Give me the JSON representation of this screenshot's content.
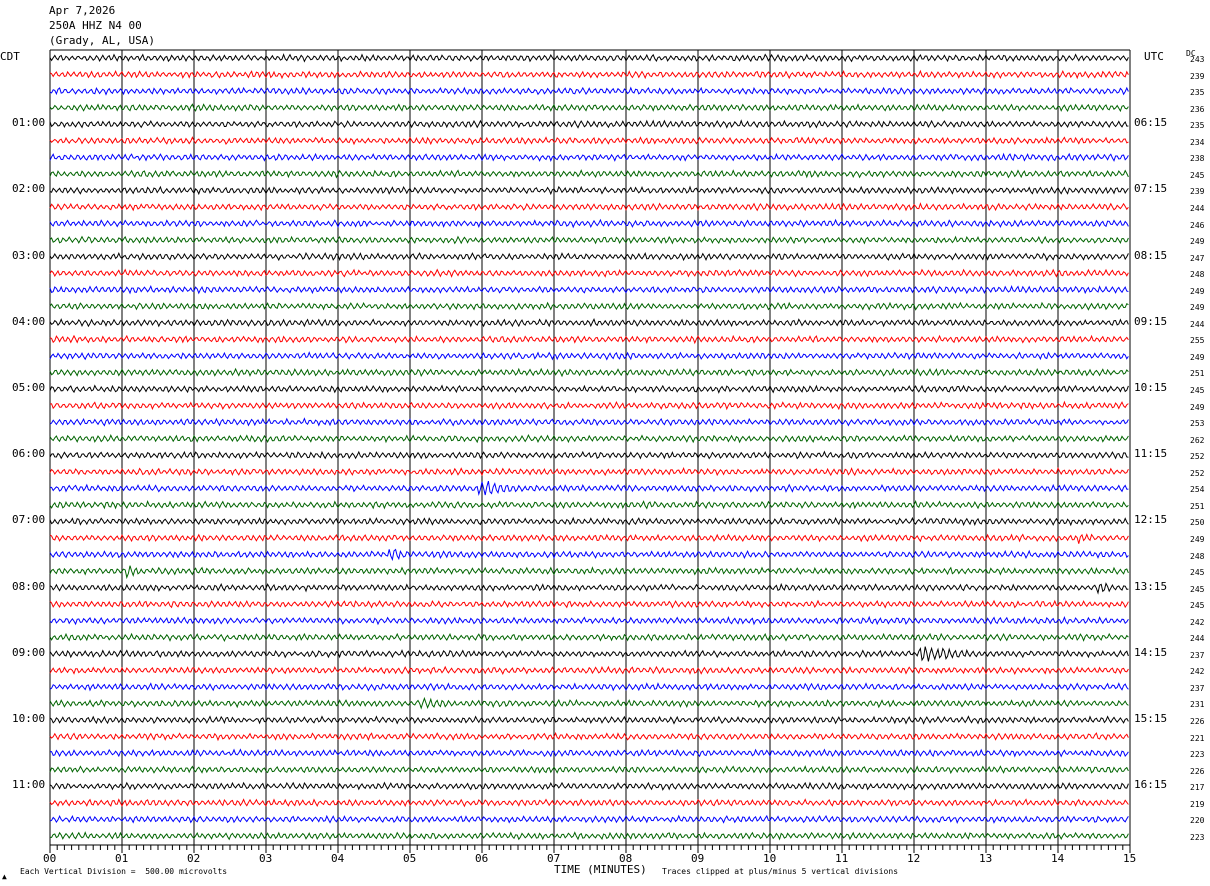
{
  "header": {
    "date": "Apr 7,2026",
    "station": "250A HHZ N4 00",
    "location": "(Grady, AL, USA)"
  },
  "axis": {
    "left_tz": "CDT",
    "right_tz": "UTC",
    "dc_label": "DC",
    "xlabel": "TIME (MINUTES)"
  },
  "footer": {
    "scale_note": "Each Vertical Division =  500.00 microvolts",
    "clip_note": "Traces clipped at plus/minus 5 vertical divisions"
  },
  "colors": {
    "trace_cycle": [
      "#000000",
      "#ff0000",
      "#0000ff",
      "#006400"
    ],
    "grid": "#000000",
    "background": "#ffffff"
  },
  "chart_data": {
    "type": "line",
    "title": "250A HHZ N4 00",
    "xlabel": "TIME (MINUTES)",
    "xlim": [
      0,
      15
    ],
    "x_ticks": [
      "00",
      "01",
      "02",
      "03",
      "04",
      "05",
      "06",
      "07",
      "08",
      "09",
      "10",
      "11",
      "12",
      "13",
      "14",
      "15"
    ],
    "left_hour_labels": [
      "01:00",
      "02:00",
      "03:00",
      "04:00",
      "05:00",
      "06:00",
      "07:00",
      "08:00",
      "09:00",
      "10:00",
      "11:00"
    ],
    "right_hour_labels": [
      "06:15",
      "07:15",
      "08:15",
      "09:15",
      "10:15",
      "11:15",
      "12:15",
      "13:15",
      "14:15",
      "15:15",
      "16:15"
    ],
    "hour_label_rows": [
      4,
      8,
      12,
      16,
      20,
      24,
      28,
      32,
      36,
      40,
      44
    ],
    "dc_values": [
      "243",
      "239",
      "235",
      "236",
      "235",
      "234",
      "238",
      "245",
      "239",
      "244",
      "246",
      "249",
      "247",
      "248",
      "249",
      "249",
      "244",
      "255",
      "249",
      "251",
      "245",
      "249",
      "253",
      "262",
      "252",
      "252",
      "254",
      "251",
      "250",
      "249",
      "248",
      "245",
      "245",
      "245",
      "242",
      "244",
      "237",
      "242",
      "237",
      "231",
      "226",
      "221",
      "223",
      "226",
      "217",
      "219",
      "220",
      "223"
    ],
    "trace_count": 48,
    "minutes_per_trace": 15,
    "events": [
      {
        "row": 26,
        "minute": 6.0,
        "duration_min": 0.6,
        "amplitude": "moderate"
      },
      {
        "row": 30,
        "minute": 4.75,
        "duration_min": 0.3,
        "amplitude": "small"
      },
      {
        "row": 29,
        "minute": 14.3,
        "duration_min": 0.2,
        "amplitude": "small"
      },
      {
        "row": 31,
        "minute": 1.1,
        "duration_min": 0.15,
        "amplitude": "small"
      },
      {
        "row": 32,
        "minute": 14.6,
        "duration_min": 0.2,
        "amplitude": "small"
      },
      {
        "row": 36,
        "minute": 12.1,
        "duration_min": 0.7,
        "amplitude": "large"
      },
      {
        "row": 39,
        "minute": 5.2,
        "duration_min": 0.4,
        "amplitude": "small"
      }
    ]
  }
}
